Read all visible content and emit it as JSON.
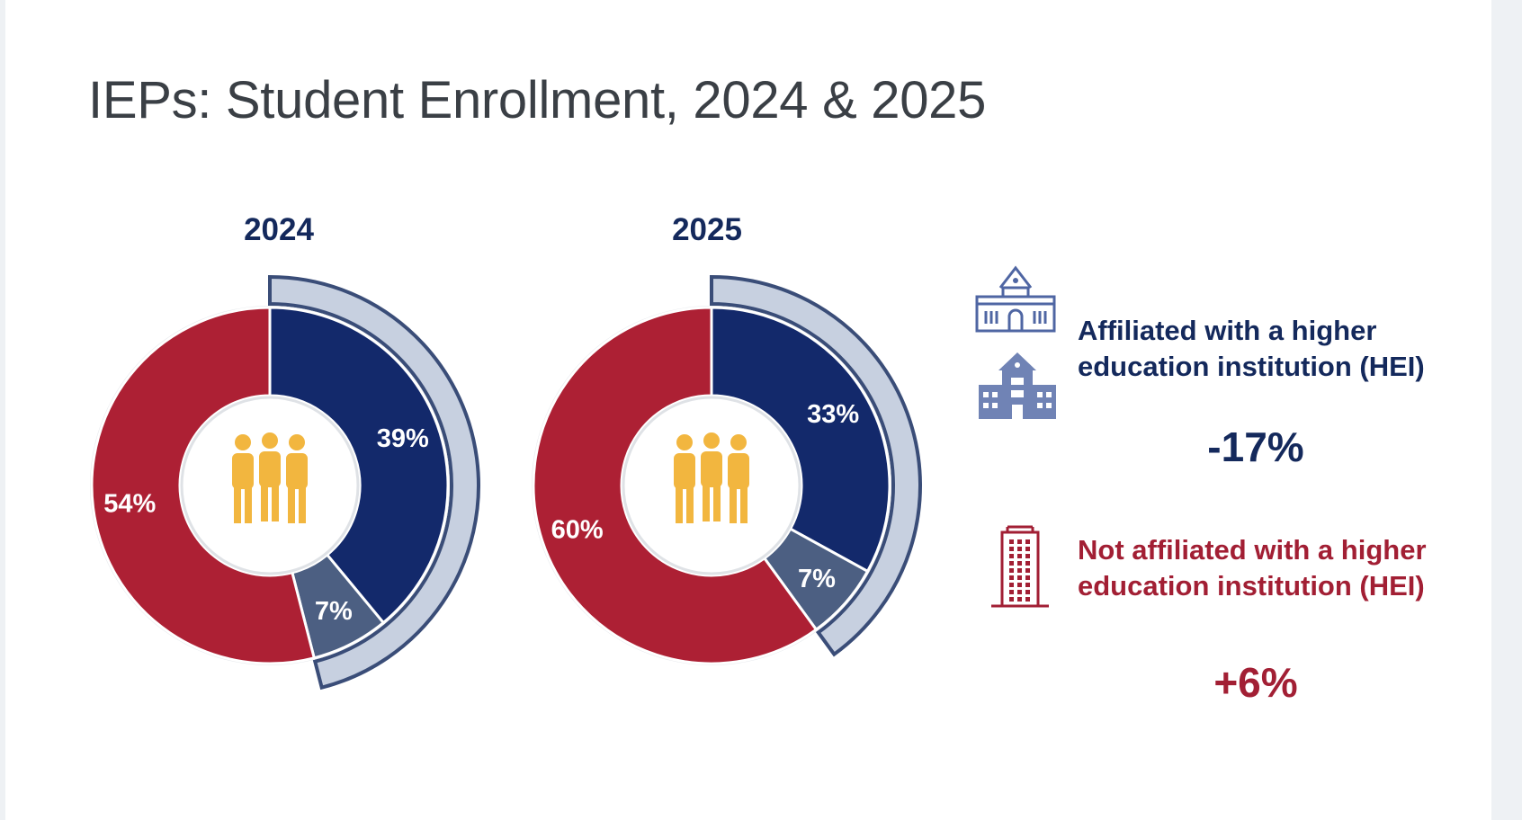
{
  "title": "IEPs: Student Enrollment, 2024 & 2025",
  "colors": {
    "hei": "#13296b",
    "hei_secondary": "#4c5f82",
    "non_hei": "#ad2034",
    "arc": "#c7d0e0",
    "arc_border": "#3a4d78",
    "people_icon": "#f2b63f",
    "building_icon": "#7083b5"
  },
  "legend": {
    "hei_label_line1": "Affiliated with a higher",
    "hei_label_line2": "education institution (HEI)",
    "hei_change": "-17%",
    "nonhei_label_line1": "Not affiliated with a higher",
    "nonhei_label_line2": "education institution (HEI)",
    "nonhei_change": "+6%"
  },
  "icons": {
    "center": "people-group-icon",
    "hei_1": "university-building-outline-icon",
    "hei_2": "school-building-icon",
    "nonhei": "office-tower-icon"
  },
  "chart_data": [
    {
      "type": "pie",
      "title": "2024",
      "categories": [
        "39%",
        "7%",
        "54%"
      ],
      "values": [
        39,
        7,
        54
      ],
      "labels": [
        "39%",
        "7%",
        "54%"
      ]
    },
    {
      "type": "pie",
      "title": "2025",
      "categories": [
        "33%",
        "7%",
        "60%"
      ],
      "values": [
        33,
        7,
        60
      ],
      "labels": [
        "33%",
        "7%",
        "60%"
      ]
    }
  ]
}
